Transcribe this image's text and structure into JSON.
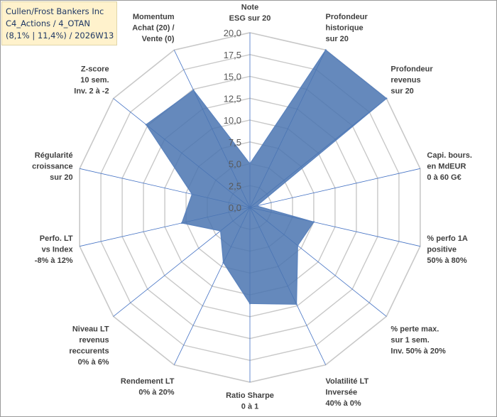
{
  "chart_data": {
    "type": "radar",
    "title": [
      "Cullen/Frost Bankers Inc",
      "C4_Actions / 4_OTAN",
      "(8,1% | 11,4%) / 2026W13"
    ],
    "range": [
      0,
      20
    ],
    "ticks": [
      "0,0",
      "2,5",
      "5,0",
      "7,5",
      "10,0",
      "12,5",
      "15,0",
      "17,5",
      "20,0"
    ],
    "axes": [
      {
        "label": [
          "Note",
          "ESG sur 20"
        ],
        "value": 5.0
      },
      {
        "label": [
          "Profondeur",
          "historique",
          "sur 20"
        ],
        "value": 20.0
      },
      {
        "label": [
          "Profondeur",
          "revenus",
          "sur 20"
        ],
        "value": 20.0
      },
      {
        "label": [
          "Capi. bours.",
          "en MdEUR",
          "0 à 60 G€"
        ],
        "value": 0.8
      },
      {
        "label": [
          "% perfo 1A",
          "positive",
          "50% à 80%"
        ],
        "value": 7.5
      },
      {
        "label": [
          "% perte max.",
          "sur 1 sem.",
          "Inv. 50% à 20%"
        ],
        "value": 7.0
      },
      {
        "label": [
          "Volatilité LT",
          "Inversée",
          "40% à 0%"
        ],
        "value": 12.3
      },
      {
        "label": [
          "Ratio Sharpe",
          "0 à 1"
        ],
        "value": 11.0
      },
      {
        "label": [
          "Rendement LT",
          "0% à 20%"
        ],
        "value": 7.0
      },
      {
        "label": [
          "Niveau LT",
          "revenus",
          "reccurents",
          "0% à 6%"
        ],
        "value": 4.3
      },
      {
        "label": [
          "Perfo. LT",
          "vs Index",
          "-8% à 12%"
        ],
        "value": 8.0
      },
      {
        "label": [
          "Régularité",
          "croissance",
          "sur 20"
        ],
        "value": 6.8
      },
      {
        "label": [
          "Z-score",
          "10 sem.",
          "Inv. 2 à -2"
        ],
        "value": 15.2
      },
      {
        "label": [
          "Momentum",
          "Achat (20) /",
          "Vente (0)"
        ],
        "value": 14.9
      }
    ],
    "colors": {
      "fill": "#4a74b0",
      "stroke": "#5a82bd",
      "grid": "#c8c8c8",
      "spoke": "#4472c4"
    }
  }
}
